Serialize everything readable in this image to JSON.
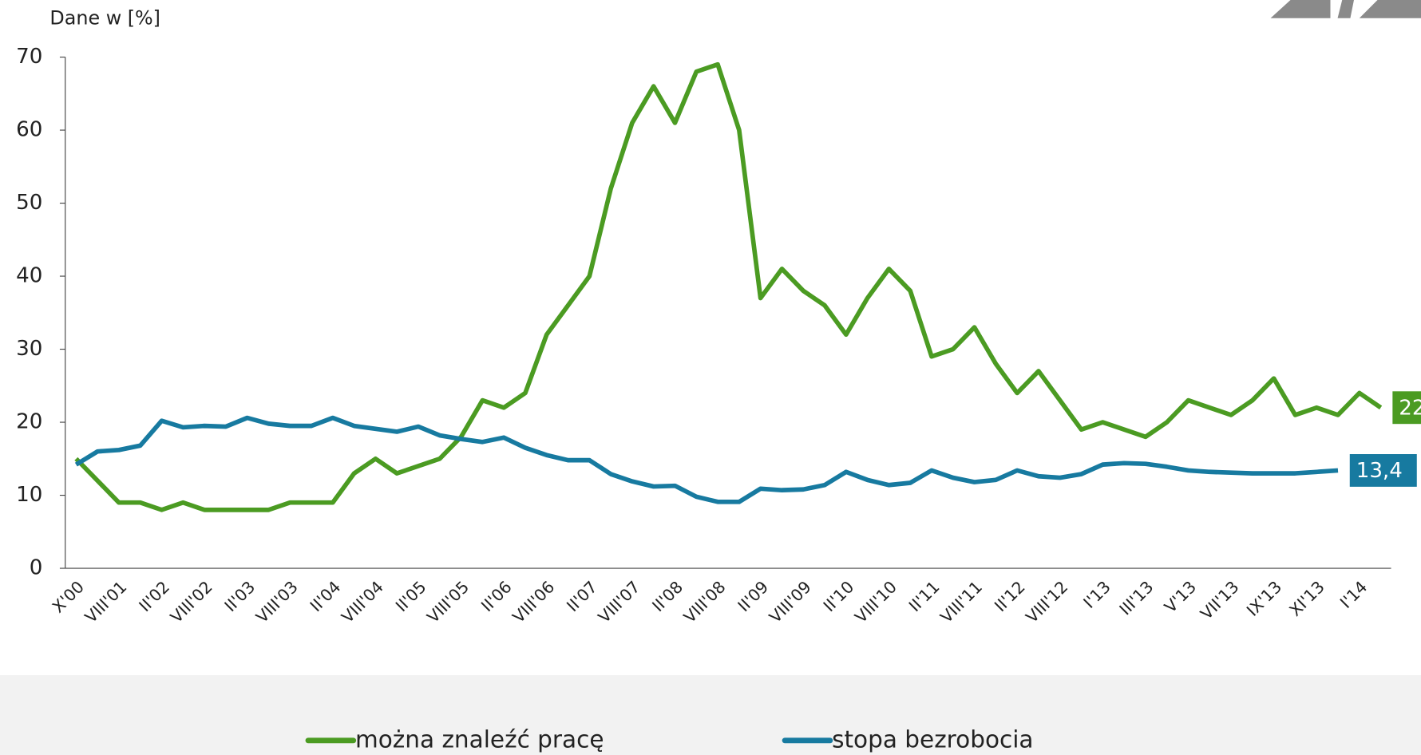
{
  "chart_data": {
    "type": "line",
    "y_label": "Dane w [%]",
    "categories": [
      "X'00",
      null,
      "VIII'01",
      null,
      "II'02",
      null,
      "VIII'02",
      null,
      "II'03",
      null,
      "VIII'03",
      null,
      "II'04",
      null,
      "VIII'04",
      null,
      "II'05",
      null,
      "VIII'05",
      null,
      "II'06",
      null,
      "VIII'06",
      null,
      "II'07",
      null,
      "VIII'07",
      null,
      "II'08",
      null,
      "VIII'08",
      null,
      "II'09",
      null,
      "VIII'09",
      null,
      "II'10",
      null,
      "VIII'10",
      null,
      "II'11",
      null,
      "VIII'11",
      null,
      "II'12",
      null,
      "VIII'12",
      null,
      "I'13",
      null,
      "III'13",
      null,
      "V'13",
      null,
      "VII'13",
      null,
      "IX'13",
      null,
      "XI'13",
      null,
      "I'14",
      null
    ],
    "series": [
      {
        "name": "można znaleźć pracę",
        "color": "#4b9b22",
        "values": [
          15,
          12,
          9,
          9,
          8,
          9,
          8,
          8,
          8,
          8,
          9,
          9,
          9,
          13,
          15,
          13,
          14,
          15,
          18,
          23,
          22,
          24,
          32,
          36,
          40,
          52,
          61,
          66,
          61,
          68,
          69,
          60,
          37,
          41,
          38,
          36,
          32,
          37,
          41,
          38,
          29,
          30,
          33,
          28,
          24,
          27,
          23,
          19,
          20,
          19,
          18,
          20,
          23,
          22,
          21,
          23,
          26,
          21,
          22,
          21,
          24,
          22
        ],
        "value_labels": [
          null,
          null,
          null,
          null,
          null,
          null,
          null,
          null,
          null,
          null,
          null,
          null,
          null,
          null,
          null,
          null,
          null,
          null,
          null,
          null,
          null,
          null,
          null,
          null,
          null,
          null,
          null,
          null,
          null,
          null,
          null,
          null,
          null,
          null,
          null,
          null,
          null,
          null,
          null,
          null,
          null,
          null,
          null,
          null,
          null,
          null,
          null,
          null,
          null,
          null,
          null,
          null,
          null,
          null,
          null,
          null,
          null,
          null,
          null,
          null,
          null,
          "22"
        ]
      },
      {
        "name": "stopa bezrobocia",
        "color": "#177aa0",
        "values": [
          14.2,
          16,
          16.2,
          16.8,
          20.2,
          19.3,
          19.5,
          19.4,
          20.6,
          19.8,
          19.5,
          19.5,
          20.6,
          19.5,
          19.1,
          18.7,
          19.4,
          18.2,
          17.7,
          17.3,
          17.9,
          16.5,
          15.5,
          14.8,
          14.8,
          12.9,
          11.9,
          11.2,
          11.3,
          9.8,
          9.1,
          9.1,
          10.9,
          10.7,
          10.8,
          11.4,
          13.2,
          12.1,
          11.4,
          11.7,
          13.4,
          12.4,
          11.8,
          12.1,
          13.4,
          12.6,
          12.4,
          12.9,
          14.2,
          14.4,
          14.3,
          13.9,
          13.4,
          13.2,
          13.1,
          13,
          13,
          13,
          13.2,
          13.4,
          null,
          null
        ],
        "value_labels": [
          null,
          null,
          null,
          null,
          null,
          null,
          null,
          null,
          null,
          null,
          null,
          null,
          null,
          null,
          null,
          null,
          null,
          null,
          null,
          null,
          null,
          null,
          null,
          null,
          null,
          null,
          null,
          null,
          null,
          null,
          null,
          null,
          null,
          null,
          null,
          null,
          null,
          null,
          null,
          null,
          null,
          null,
          null,
          null,
          null,
          null,
          null,
          null,
          null,
          null,
          null,
          null,
          null,
          null,
          null,
          null,
          null,
          null,
          null,
          "13,4",
          null,
          null
        ]
      }
    ],
    "ylim": [
      0,
      70
    ],
    "yticks": [
      0,
      10,
      20,
      30,
      40,
      50,
      60,
      70
    ]
  }
}
